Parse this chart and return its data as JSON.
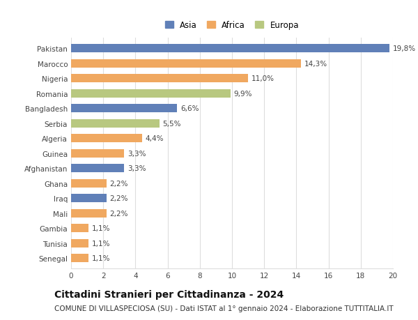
{
  "categories": [
    "Pakistan",
    "Marocco",
    "Nigeria",
    "Romania",
    "Bangladesh",
    "Serbia",
    "Algeria",
    "Guinea",
    "Afghanistan",
    "Ghana",
    "Iraq",
    "Mali",
    "Gambia",
    "Tunisia",
    "Senegal"
  ],
  "values": [
    19.8,
    14.3,
    11.0,
    9.9,
    6.6,
    5.5,
    4.4,
    3.3,
    3.3,
    2.2,
    2.2,
    2.2,
    1.1,
    1.1,
    1.1
  ],
  "labels": [
    "19,8%",
    "14,3%",
    "11,0%",
    "9,9%",
    "6,6%",
    "5,5%",
    "4,4%",
    "3,3%",
    "3,3%",
    "2,2%",
    "2,2%",
    "2,2%",
    "1,1%",
    "1,1%",
    "1,1%"
  ],
  "colors": [
    "#6080b8",
    "#f0a860",
    "#f0a860",
    "#b8c880",
    "#6080b8",
    "#b8c880",
    "#f0a860",
    "#f0a860",
    "#6080b8",
    "#f0a860",
    "#6080b8",
    "#f0a860",
    "#f0a860",
    "#f0a860",
    "#f0a860"
  ],
  "legend_labels": [
    "Asia",
    "Africa",
    "Europa"
  ],
  "legend_colors": [
    "#6080b8",
    "#f0a860",
    "#b8c880"
  ],
  "title": "Cittadini Stranieri per Cittadinanza - 2024",
  "subtitle": "COMUNE DI VILLASPECIOSA (SU) - Dati ISTAT al 1° gennaio 2024 - Elaborazione TUTTITALIA.IT",
  "xlim": [
    0,
    20
  ],
  "xticks": [
    0,
    2,
    4,
    6,
    8,
    10,
    12,
    14,
    16,
    18,
    20
  ],
  "background_color": "#ffffff",
  "grid_color": "#dddddd",
  "bar_height": 0.55,
  "title_fontsize": 10,
  "subtitle_fontsize": 7.5,
  "tick_fontsize": 7.5,
  "label_fontsize": 7.5,
  "legend_fontsize": 8.5
}
